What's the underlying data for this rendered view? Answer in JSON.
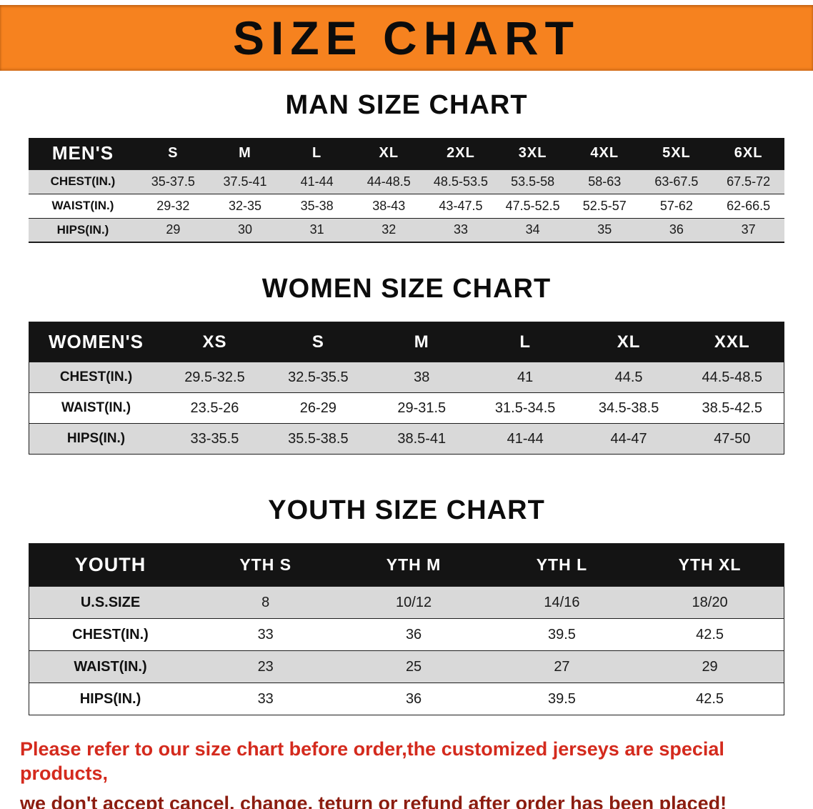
{
  "banner": {
    "title": "SIZE CHART"
  },
  "colors": {
    "banner_bg": "#f6821f",
    "header_bg": "#141414",
    "row_alt": "#d9d9d9",
    "footer_red": "#d42a1d",
    "footer_dark_red": "#8c1d10"
  },
  "tables": [
    {
      "heading": "MAN SIZE CHART",
      "header": [
        "MEN'S",
        "S",
        "M",
        "L",
        "XL",
        "2XL",
        "3XL",
        "4XL",
        "5XL",
        "6XL"
      ],
      "rows": [
        [
          "CHEST(IN.)",
          "35-37.5",
          "37.5-41",
          "41-44",
          "44-48.5",
          "48.5-53.5",
          "53.5-58",
          "58-63",
          "63-67.5",
          "67.5-72"
        ],
        [
          "WAIST(IN.)",
          "29-32",
          "32-35",
          "35-38",
          "38-43",
          "43-47.5",
          "47.5-52.5",
          "52.5-57",
          "57-62",
          "62-66.5"
        ],
        [
          "HIPS(IN.)",
          "29",
          "30",
          "31",
          "32",
          "33",
          "34",
          "35",
          "36",
          "37"
        ]
      ]
    },
    {
      "heading": "WOMEN SIZE CHART",
      "header": [
        "WOMEN'S",
        "XS",
        "S",
        "M",
        "L",
        "XL",
        "XXL"
      ],
      "rows": [
        [
          "CHEST(IN.)",
          "29.5-32.5",
          "32.5-35.5",
          "38",
          "41",
          "44.5",
          "44.5-48.5"
        ],
        [
          "WAIST(IN.)",
          "23.5-26",
          "26-29",
          "29-31.5",
          "31.5-34.5",
          "34.5-38.5",
          "38.5-42.5"
        ],
        [
          "HIPS(IN.)",
          "33-35.5",
          "35.5-38.5",
          "38.5-41",
          "41-44",
          "44-47",
          "47-50"
        ]
      ]
    },
    {
      "heading": "YOUTH SIZE CHART",
      "header": [
        "YOUTH",
        "YTH S",
        "YTH M",
        "YTH L",
        "YTH XL"
      ],
      "rows": [
        [
          "U.S.SIZE",
          "8",
          "10/12",
          "14/16",
          "18/20"
        ],
        [
          "CHEST(IN.)",
          "33",
          "36",
          "39.5",
          "42.5"
        ],
        [
          "WAIST(IN.)",
          "23",
          "25",
          "27",
          "29"
        ],
        [
          "HIPS(IN.)",
          "33",
          "36",
          "39.5",
          "42.5"
        ]
      ]
    }
  ],
  "footer": {
    "line1": "Please refer to our size chart before order,the customized jerseys are special products,",
    "line2": "we don't accept cancel, change, teturn or refund after order has been placed!"
  }
}
